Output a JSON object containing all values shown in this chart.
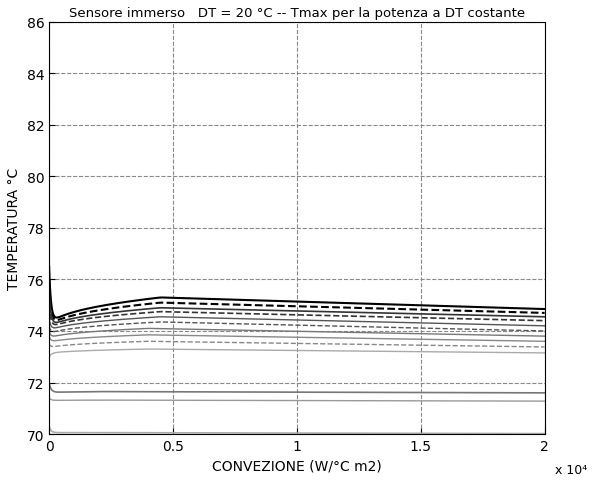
{
  "title": "Sensore immerso   DT = 20 °C -- Tmax per la potenza a DT costante",
  "xlabel": "CONVEZIONE (W/°C m2)",
  "ylabel": "TEMPERATURA °C",
  "xlim": [
    0,
    20000
  ],
  "ylim": [
    70,
    86
  ],
  "xticks": [
    0,
    5000,
    10000,
    15000,
    20000
  ],
  "xtick_labels": [
    "0",
    "0.5",
    "1",
    "1.5",
    "2"
  ],
  "x_exp_label": "x 10⁴",
  "yticks": [
    70,
    72,
    74,
    76,
    78,
    80,
    82,
    84,
    86
  ],
  "background_color": "#ffffff",
  "grid_color": "#888888",
  "curves": [
    {
      "start": 76.5,
      "drop": 74.05,
      "peak": 75.3,
      "peak_x": 4500,
      "end": 74.85,
      "style": "-",
      "color": "#000000",
      "lw": 1.5
    },
    {
      "start": 76.0,
      "drop": 74.02,
      "peak": 75.1,
      "peak_x": 4500,
      "end": 74.7,
      "style": "--",
      "color": "#000000",
      "lw": 1.5
    },
    {
      "start": 75.5,
      "drop": 74.0,
      "peak": 74.9,
      "peak_x": 4500,
      "end": 74.55,
      "style": "-",
      "color": "#333333",
      "lw": 1.2
    },
    {
      "start": 75.0,
      "drop": 73.97,
      "peak": 74.75,
      "peak_x": 4500,
      "end": 74.4,
      "style": "--",
      "color": "#333333",
      "lw": 1.2
    },
    {
      "start": 74.5,
      "drop": 73.9,
      "peak": 74.55,
      "peak_x": 4500,
      "end": 74.2,
      "style": "-",
      "color": "#555555",
      "lw": 1.0
    },
    {
      "start": 74.2,
      "drop": 73.8,
      "peak": 74.35,
      "peak_x": 4500,
      "end": 74.0,
      "style": "--",
      "color": "#555555",
      "lw": 1.0
    },
    {
      "start": 74.0,
      "drop": 73.65,
      "peak": 74.1,
      "peak_x": 4000,
      "end": 73.8,
      "style": "-",
      "color": "#777777",
      "lw": 1.0
    },
    {
      "start": 73.8,
      "drop": 73.5,
      "peak": 73.85,
      "peak_x": 4000,
      "end": 73.6,
      "style": "-",
      "color": "#888888",
      "lw": 1.0
    },
    {
      "start": 73.5,
      "drop": 73.3,
      "peak": 73.6,
      "peak_x": 4000,
      "end": 73.38,
      "style": "--",
      "color": "#888888",
      "lw": 1.0
    },
    {
      "start": 73.0,
      "drop": 73.1,
      "peak": 73.3,
      "peak_x": 4000,
      "end": 73.15,
      "style": "-",
      "color": "#aaaaaa",
      "lw": 1.0
    },
    {
      "start": 72.0,
      "drop": 71.6,
      "peak": 71.65,
      "peak_x": 2000,
      "end": 71.6,
      "style": "-",
      "color": "#777777",
      "lw": 1.2
    },
    {
      "start": 71.4,
      "drop": 71.3,
      "peak": 71.32,
      "peak_x": 2000,
      "end": 71.28,
      "style": "-",
      "color": "#999999",
      "lw": 1.0
    },
    {
      "start": 70.3,
      "drop": 70.05,
      "peak": 70.06,
      "peak_x": 1000,
      "end": 70.02,
      "style": "-",
      "color": "#aaaaaa",
      "lw": 1.2
    }
  ]
}
